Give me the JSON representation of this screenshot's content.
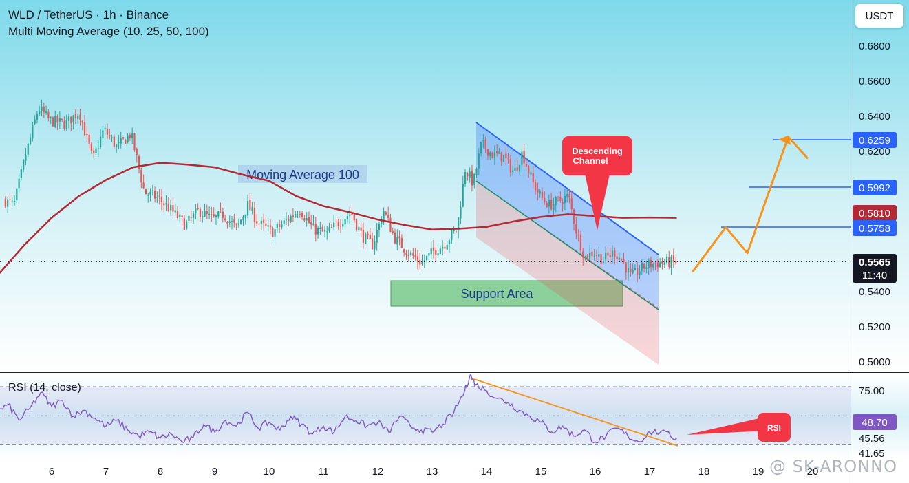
{
  "header": {
    "title": "WLD / TetherUS · 1h · Binance",
    "indicator": "Multi Moving Average (10, 25, 50, 100)"
  },
  "currency_label": "USDT",
  "rsi_title": "RSI (14, close)",
  "watermark": "@ SK-ARONNO",
  "colors": {
    "up": "#26a69a",
    "down": "#ef5350",
    "ma100": "#b22833",
    "channel_upper": "#2962ff",
    "channel_lower": "#1e8c6e",
    "projection": "#f7931a",
    "rsi_line": "#7e57c2",
    "callout": "#f23645",
    "support": "#7bc98a"
  },
  "price_axis": {
    "ticks": [
      "0.6800",
      "0.6600",
      "0.6400",
      "0.6200",
      "0.5400",
      "0.5200",
      "0.5000"
    ],
    "range": [
      0.4955,
      0.6925
    ]
  },
  "price_badges": {
    "target_1": "0.6259",
    "target_2": "0.5992",
    "ma100_value": "0.5810",
    "target_3": "0.5758",
    "last_price": "0.5565",
    "countdown": "11:40"
  },
  "rsi_axis": {
    "ticks": [
      "75.00",
      "45.56",
      "41.65"
    ],
    "current": "48.70",
    "range": [
      38,
      82
    ]
  },
  "x_axis": {
    "labels": [
      "6",
      "7",
      "8",
      "9",
      "10",
      "11",
      "12",
      "13",
      "14",
      "15",
      "16",
      "17",
      "18",
      "19",
      "20"
    ]
  },
  "annotations": {
    "ma_label": "Moving Average 100",
    "support_label": "Support Area",
    "channel_callout": [
      "Descending",
      "Channel"
    ],
    "rsi_callout": "RSI"
  },
  "chart_data": [
    {
      "type": "candlestick",
      "title": "WLD / TetherUS · 1h · Binance",
      "x_unit": "day of month",
      "ylim": [
        0.4955,
        0.6925
      ],
      "price_path": [
        [
          5.15,
          0.591
        ],
        [
          5.35,
          0.588
        ],
        [
          5.55,
          0.614
        ],
        [
          5.8,
          0.642
        ],
        [
          6.0,
          0.635
        ],
        [
          6.3,
          0.633
        ],
        [
          6.55,
          0.64
        ],
        [
          6.8,
          0.613
        ],
        [
          7.0,
          0.63
        ],
        [
          7.25,
          0.62
        ],
        [
          7.5,
          0.628
        ],
        [
          7.75,
          0.595
        ],
        [
          8.0,
          0.592
        ],
        [
          8.25,
          0.585
        ],
        [
          8.5,
          0.577
        ],
        [
          8.75,
          0.585
        ],
        [
          9.0,
          0.58
        ],
        [
          9.2,
          0.583
        ],
        [
          9.45,
          0.575
        ],
        [
          9.65,
          0.588
        ],
        [
          9.85,
          0.578
        ],
        [
          10.1,
          0.573
        ],
        [
          10.35,
          0.579
        ],
        [
          10.6,
          0.586
        ],
        [
          10.85,
          0.575
        ],
        [
          11.1,
          0.572
        ],
        [
          11.3,
          0.578
        ],
        [
          11.55,
          0.584
        ],
        [
          11.75,
          0.571
        ],
        [
          11.95,
          0.566
        ],
        [
          12.15,
          0.585
        ],
        [
          12.35,
          0.57
        ],
        [
          12.6,
          0.562
        ],
        [
          12.85,
          0.556
        ],
        [
          13.05,
          0.562
        ],
        [
          13.25,
          0.566
        ],
        [
          13.5,
          0.575
        ],
        [
          13.65,
          0.608
        ],
        [
          13.8,
          0.6
        ],
        [
          13.95,
          0.622
        ],
        [
          14.15,
          0.616
        ],
        [
          14.35,
          0.615
        ],
        [
          14.55,
          0.606
        ],
        [
          14.7,
          0.617
        ],
        [
          14.9,
          0.6
        ],
        [
          15.05,
          0.592
        ],
        [
          15.2,
          0.588
        ],
        [
          15.35,
          0.59
        ],
        [
          15.55,
          0.593
        ],
        [
          15.7,
          0.573
        ],
        [
          15.85,
          0.559
        ],
        [
          16.0,
          0.562
        ],
        [
          16.2,
          0.558
        ],
        [
          16.4,
          0.562
        ],
        [
          16.55,
          0.557
        ],
        [
          16.7,
          0.548
        ],
        [
          16.85,
          0.552
        ],
        [
          17.0,
          0.555
        ],
        [
          17.2,
          0.556
        ],
        [
          17.5,
          0.5565
        ]
      ],
      "series": [
        {
          "name": "Moving Average 100",
          "x": [
            5.0,
            5.5,
            6.0,
            6.5,
            7.0,
            7.5,
            8.0,
            8.5,
            9.0,
            9.5,
            10.0,
            10.5,
            11.0,
            11.5,
            12.0,
            12.5,
            13.0,
            13.5,
            14.0,
            14.5,
            15.0,
            15.5,
            16.0,
            16.5,
            17.0,
            17.5
          ],
          "values": [
            0.549,
            0.566,
            0.581,
            0.593,
            0.602,
            0.609,
            0.6115,
            0.6105,
            0.609,
            0.605,
            0.6015,
            0.593,
            0.5875,
            0.584,
            0.58,
            0.577,
            0.5745,
            0.575,
            0.576,
            0.579,
            0.5815,
            0.583,
            0.582,
            0.581,
            0.5812,
            0.581
          ]
        },
        {
          "name": "Projection",
          "x": [
            17.8,
            18.4,
            18.8,
            19.55,
            19.9
          ],
          "values": [
            0.5515,
            0.5758,
            0.5615,
            0.6259,
            0.6142
          ]
        }
      ],
      "annotations": [
        "Moving Average 100",
        "Support Area",
        "Descending Channel"
      ]
    },
    {
      "type": "line",
      "title": "RSI (14, close)",
      "ylim": [
        38,
        82
      ],
      "x": [
        5.0,
        5.2,
        5.4,
        5.6,
        5.8,
        6.0,
        6.2,
        6.4,
        6.6,
        6.8,
        7.0,
        7.2,
        7.4,
        7.6,
        7.8,
        8.0,
        8.2,
        8.4,
        8.6,
        8.8,
        9.0,
        9.2,
        9.4,
        9.6,
        9.8,
        10.0,
        10.2,
        10.4,
        10.6,
        10.8,
        11.0,
        11.2,
        11.4,
        11.6,
        11.8,
        12.0,
        12.2,
        12.4,
        12.6,
        12.8,
        13.0,
        13.2,
        13.4,
        13.6,
        13.7,
        13.8,
        14.0,
        14.2,
        14.4,
        14.6,
        14.8,
        15.0,
        15.2,
        15.4,
        15.6,
        15.8,
        16.0,
        16.2,
        16.4,
        16.6,
        16.8,
        17.0,
        17.2,
        17.5
      ],
      "values": [
        62,
        66,
        58,
        64,
        72,
        65,
        68,
        60,
        63,
        59,
        55,
        58,
        53,
        50,
        52,
        49,
        51,
        47,
        49,
        56,
        52,
        58,
        55,
        62,
        54,
        57,
        53,
        60,
        56,
        51,
        55,
        52,
        60,
        58,
        55,
        57,
        52,
        60,
        55,
        53,
        52,
        56,
        62,
        73,
        81,
        76,
        73,
        69,
        67,
        63,
        60,
        57,
        52,
        55,
        50,
        53,
        47,
        50,
        54,
        50,
        47,
        52,
        52,
        48.7
      ],
      "reference_lines": [
        75.0,
        45.56
      ]
    }
  ]
}
